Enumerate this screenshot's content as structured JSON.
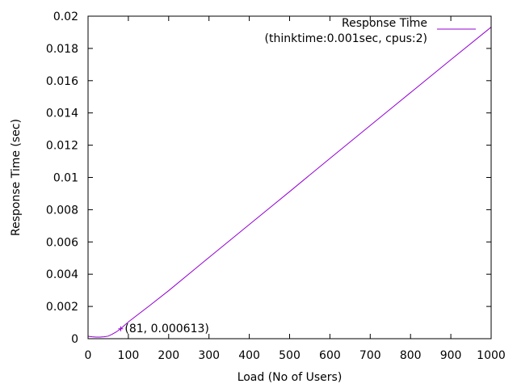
{
  "chart_data": {
    "type": "line",
    "xlabel": "Load (No of Users)",
    "ylabel": "Response Time (sec)",
    "xlim": [
      0,
      1000
    ],
    "ylim": [
      0,
      0.02
    ],
    "x_ticks": [
      0,
      100,
      200,
      300,
      400,
      500,
      600,
      700,
      800,
      900,
      1000
    ],
    "y_ticks": [
      0,
      0.002,
      0.004,
      0.006,
      0.008,
      0.01,
      0.012,
      0.014,
      0.016,
      0.018,
      0.02
    ],
    "x_tick_labels": [
      "0",
      "100",
      "200",
      "300",
      "400",
      "500",
      "600",
      "700",
      "800",
      "900",
      "1000"
    ],
    "y_tick_labels": [
      "0",
      "0.002",
      "0.004",
      "0.006",
      "0.008",
      "0.01",
      "0.012",
      "0.014",
      "0.016",
      "0.018",
      "0.02"
    ],
    "legend": {
      "line1": "Response Time",
      "line2": "(thinktime:0.001sec, cpus:2)",
      "placement": "top-right"
    },
    "grid": false,
    "series": [
      {
        "name": "Response Time (thinktime:0.001sec, cpus:2)",
        "color": "#9400d3",
        "x": [
          0,
          10,
          20,
          30,
          40,
          50,
          60,
          70,
          81,
          90,
          100,
          150,
          200,
          300,
          400,
          500,
          600,
          700,
          800,
          900,
          1000
        ],
        "y": [
          0.00015,
          0.00012,
          0.0001,
          0.0001,
          0.00012,
          0.00016,
          0.00028,
          0.00042,
          0.000613,
          0.00082,
          0.00104,
          0.002,
          0.00298,
          0.00504,
          0.00708,
          0.00912,
          0.01118,
          0.01322,
          0.01526,
          0.0173,
          0.01932
        ]
      }
    ],
    "annotations": [
      {
        "x": 81,
        "y": 0.000613,
        "text": "(81, 0.000613)",
        "marker": "+"
      }
    ]
  }
}
